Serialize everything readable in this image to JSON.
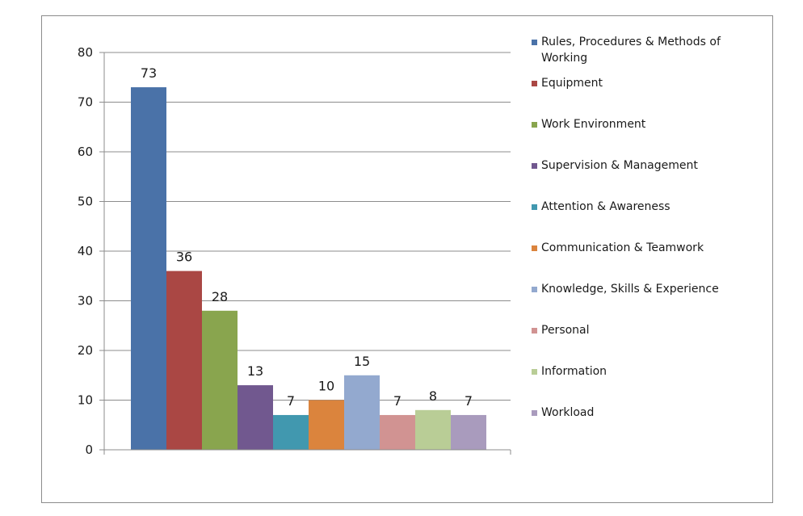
{
  "chart_data": {
    "type": "bar",
    "title": "",
    "xlabel": "",
    "ylabel": "",
    "ylim": [
      0,
      80
    ],
    "yticks": [
      0,
      10,
      20,
      30,
      40,
      50,
      60,
      70,
      80
    ],
    "grid": true,
    "legend_position": "right",
    "series": [
      {
        "name": "Rules, Procedures & Methods of Working",
        "value": 73,
        "color": "#4a72a8"
      },
      {
        "name": "Equipment",
        "value": 36,
        "color": "#aa4744"
      },
      {
        "name": "Work Environment",
        "value": 28,
        "color": "#89a54e"
      },
      {
        "name": "Supervision & Management",
        "value": 13,
        "color": "#71588f"
      },
      {
        "name": "Attention & Awareness",
        "value": 7,
        "color": "#4198af"
      },
      {
        "name": "Communication & Teamwork",
        "value": 10,
        "color": "#db843d"
      },
      {
        "name": "Knowledge, Skills & Experience",
        "value": 15,
        "color": "#93a9cf"
      },
      {
        "name": "Personal",
        "value": 7,
        "color": "#d19392"
      },
      {
        "name": "Information",
        "value": 8,
        "color": "#b9cd96"
      },
      {
        "name": "Workload",
        "value": 7,
        "color": "#a99bbd"
      }
    ]
  }
}
